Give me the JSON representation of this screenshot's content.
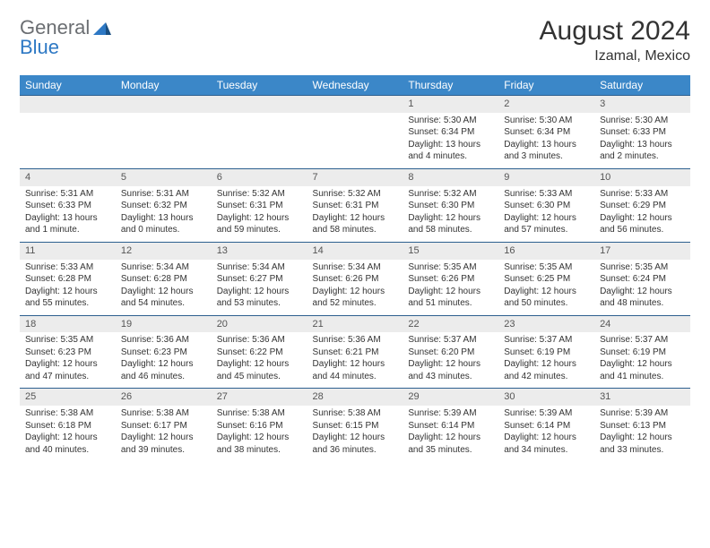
{
  "logo": {
    "general": "General",
    "blue": "Blue"
  },
  "title": "August 2024",
  "location": "Izamal, Mexico",
  "weekdays": [
    "Sunday",
    "Monday",
    "Tuesday",
    "Wednesday",
    "Thursday",
    "Friday",
    "Saturday"
  ],
  "colors": {
    "header_bg": "#3b87c8",
    "header_text": "#ffffff",
    "daynum_bg": "#ececec",
    "border": "#2d5f8f",
    "text": "#333333",
    "logo_gray": "#6b6e72",
    "logo_blue": "#2d78c4"
  },
  "weeks": [
    [
      null,
      null,
      null,
      null,
      {
        "d": "1",
        "sr": "5:30 AM",
        "ss": "6:34 PM",
        "dl": "13 hours and 4 minutes."
      },
      {
        "d": "2",
        "sr": "5:30 AM",
        "ss": "6:34 PM",
        "dl": "13 hours and 3 minutes."
      },
      {
        "d": "3",
        "sr": "5:30 AM",
        "ss": "6:33 PM",
        "dl": "13 hours and 2 minutes."
      }
    ],
    [
      {
        "d": "4",
        "sr": "5:31 AM",
        "ss": "6:33 PM",
        "dl": "13 hours and 1 minute."
      },
      {
        "d": "5",
        "sr": "5:31 AM",
        "ss": "6:32 PM",
        "dl": "13 hours and 0 minutes."
      },
      {
        "d": "6",
        "sr": "5:32 AM",
        "ss": "6:31 PM",
        "dl": "12 hours and 59 minutes."
      },
      {
        "d": "7",
        "sr": "5:32 AM",
        "ss": "6:31 PM",
        "dl": "12 hours and 58 minutes."
      },
      {
        "d": "8",
        "sr": "5:32 AM",
        "ss": "6:30 PM",
        "dl": "12 hours and 58 minutes."
      },
      {
        "d": "9",
        "sr": "5:33 AM",
        "ss": "6:30 PM",
        "dl": "12 hours and 57 minutes."
      },
      {
        "d": "10",
        "sr": "5:33 AM",
        "ss": "6:29 PM",
        "dl": "12 hours and 56 minutes."
      }
    ],
    [
      {
        "d": "11",
        "sr": "5:33 AM",
        "ss": "6:28 PM",
        "dl": "12 hours and 55 minutes."
      },
      {
        "d": "12",
        "sr": "5:34 AM",
        "ss": "6:28 PM",
        "dl": "12 hours and 54 minutes."
      },
      {
        "d": "13",
        "sr": "5:34 AM",
        "ss": "6:27 PM",
        "dl": "12 hours and 53 minutes."
      },
      {
        "d": "14",
        "sr": "5:34 AM",
        "ss": "6:26 PM",
        "dl": "12 hours and 52 minutes."
      },
      {
        "d": "15",
        "sr": "5:35 AM",
        "ss": "6:26 PM",
        "dl": "12 hours and 51 minutes."
      },
      {
        "d": "16",
        "sr": "5:35 AM",
        "ss": "6:25 PM",
        "dl": "12 hours and 50 minutes."
      },
      {
        "d": "17",
        "sr": "5:35 AM",
        "ss": "6:24 PM",
        "dl": "12 hours and 48 minutes."
      }
    ],
    [
      {
        "d": "18",
        "sr": "5:35 AM",
        "ss": "6:23 PM",
        "dl": "12 hours and 47 minutes."
      },
      {
        "d": "19",
        "sr": "5:36 AM",
        "ss": "6:23 PM",
        "dl": "12 hours and 46 minutes."
      },
      {
        "d": "20",
        "sr": "5:36 AM",
        "ss": "6:22 PM",
        "dl": "12 hours and 45 minutes."
      },
      {
        "d": "21",
        "sr": "5:36 AM",
        "ss": "6:21 PM",
        "dl": "12 hours and 44 minutes."
      },
      {
        "d": "22",
        "sr": "5:37 AM",
        "ss": "6:20 PM",
        "dl": "12 hours and 43 minutes."
      },
      {
        "d": "23",
        "sr": "5:37 AM",
        "ss": "6:19 PM",
        "dl": "12 hours and 42 minutes."
      },
      {
        "d": "24",
        "sr": "5:37 AM",
        "ss": "6:19 PM",
        "dl": "12 hours and 41 minutes."
      }
    ],
    [
      {
        "d": "25",
        "sr": "5:38 AM",
        "ss": "6:18 PM",
        "dl": "12 hours and 40 minutes."
      },
      {
        "d": "26",
        "sr": "5:38 AM",
        "ss": "6:17 PM",
        "dl": "12 hours and 39 minutes."
      },
      {
        "d": "27",
        "sr": "5:38 AM",
        "ss": "6:16 PM",
        "dl": "12 hours and 38 minutes."
      },
      {
        "d": "28",
        "sr": "5:38 AM",
        "ss": "6:15 PM",
        "dl": "12 hours and 36 minutes."
      },
      {
        "d": "29",
        "sr": "5:39 AM",
        "ss": "6:14 PM",
        "dl": "12 hours and 35 minutes."
      },
      {
        "d": "30",
        "sr": "5:39 AM",
        "ss": "6:14 PM",
        "dl": "12 hours and 34 minutes."
      },
      {
        "d": "31",
        "sr": "5:39 AM",
        "ss": "6:13 PM",
        "dl": "12 hours and 33 minutes."
      }
    ]
  ],
  "labels": {
    "sunrise": "Sunrise: ",
    "sunset": "Sunset: ",
    "daylight": "Daylight: "
  }
}
